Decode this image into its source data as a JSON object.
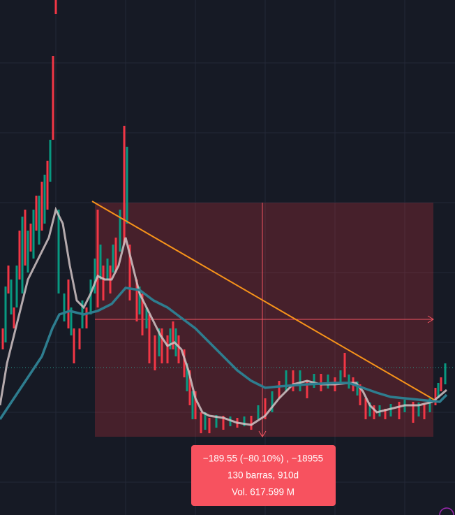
{
  "tooltip": {
    "lines": [
      "−189.55 (−80.10%) , −18955",
      "130 barras, 910d",
      "Vol. 617.599 M"
    ]
  }
}
